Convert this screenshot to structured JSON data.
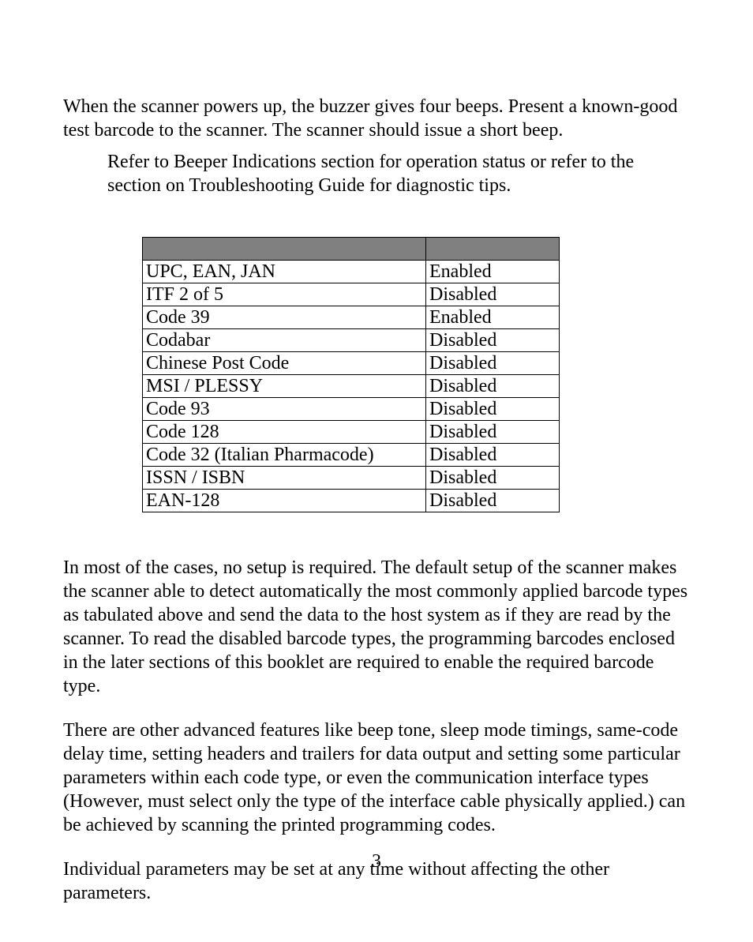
{
  "paragraphs": {
    "p1": "When the scanner powers up, the buzzer gives four beeps. Present a known-good test barcode to the scanner. The scanner should issue a short beep.",
    "p1_indent": "Refer to Beeper Indications section for operation status or refer to the section on Troubleshooting Guide for diagnostic tips.",
    "p2": "In most of the cases, no setup is required. The default setup of the scanner makes the scanner able to detect automatically the most commonly applied barcode types as tabulated above and send the data to the host system as if they are read by the scanner. To read the disabled barcode types, the programming barcodes enclosed in the later sections of this booklet are required to enable the required barcode type.",
    "p3": "There are other advanced features like beep tone, sleep mode timings, same-code delay time, setting headers and trailers for data output and setting some particular parameters within each code type, or even the communication interface types (However, must select only the type of the interface cable physically applied.) can be achieved by scanning the printed programming codes.",
    "p4": "Individual parameters may be set at any time without affecting the other parameters."
  },
  "table": {
    "header": {
      "col1": "",
      "col2": ""
    },
    "rows": [
      {
        "type": "UPC, EAN, JAN",
        "status": "Enabled"
      },
      {
        "type": "ITF 2 of 5",
        "status": "Disabled"
      },
      {
        "type": "Code 39",
        "status": "Enabled"
      },
      {
        "type": "Codabar",
        "status": "Disabled"
      },
      {
        "type": "Chinese Post Code",
        "status": "Disabled"
      },
      {
        "type": "MSI / PLESSY",
        "status": "Disabled"
      },
      {
        "type": "Code 93",
        "status": "Disabled"
      },
      {
        "type": "Code 128",
        "status": "Disabled"
      },
      {
        "type": "Code 32 (Italian Pharmacode)",
        "status": "Disabled"
      },
      {
        "type": "ISSN / ISBN",
        "status": "Disabled"
      },
      {
        "type": "EAN-128",
        "status": "Disabled"
      }
    ]
  },
  "page_number": "3",
  "colors": {
    "header_bg": "#808080",
    "text": "#000000",
    "background": "#ffffff"
  }
}
